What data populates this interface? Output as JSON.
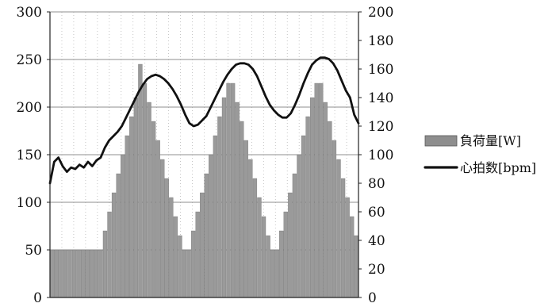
{
  "chart_data": {
    "type": "bar",
    "title": "",
    "xlabel": "",
    "ylabel_left": "",
    "ylabel_right": "",
    "left_axis": {
      "min": 0,
      "max": 300,
      "ticks": [
        "0",
        "50",
        "100",
        "150",
        "200",
        "250",
        "300"
      ]
    },
    "right_axis": {
      "min": 0,
      "max": 200,
      "ticks": [
        "0",
        "20",
        "40",
        "60",
        "80",
        "100",
        "120",
        "140",
        "160",
        "180",
        "200"
      ]
    },
    "grid": {
      "horizontal": true,
      "vertical_dotted": true
    },
    "legend_position": "right",
    "series": [
      {
        "name": "負荷量[W]",
        "type": "bar",
        "axis": "left",
        "color": "#9a9a9a",
        "values": [
          50,
          50,
          50,
          50,
          50,
          50,
          50,
          50,
          50,
          50,
          50,
          50,
          70,
          90,
          110,
          130,
          150,
          170,
          190,
          210,
          245,
          225,
          205,
          185,
          165,
          145,
          125,
          105,
          85,
          65,
          50,
          50,
          70,
          90,
          110,
          130,
          150,
          170,
          190,
          210,
          225,
          225,
          205,
          185,
          165,
          145,
          125,
          105,
          85,
          65,
          50,
          50,
          70,
          90,
          110,
          130,
          150,
          170,
          190,
          210,
          225,
          225,
          205,
          185,
          165,
          145,
          125,
          105,
          85,
          65
        ]
      },
      {
        "name": "心拍数[bpm]",
        "type": "line",
        "axis": "right",
        "color": "#111111",
        "points": [
          [
            0,
            80
          ],
          [
            1,
            95
          ],
          [
            2,
            98
          ],
          [
            3,
            92
          ],
          [
            4,
            88
          ],
          [
            5,
            91
          ],
          [
            6,
            90
          ],
          [
            7,
            93
          ],
          [
            8,
            91
          ],
          [
            9,
            95
          ],
          [
            10,
            92
          ],
          [
            11,
            96
          ],
          [
            12,
            98
          ],
          [
            13,
            105
          ],
          [
            14,
            110
          ],
          [
            15,
            113
          ],
          [
            16,
            116
          ],
          [
            17,
            120
          ],
          [
            18,
            126
          ],
          [
            19,
            132
          ],
          [
            20,
            138
          ],
          [
            21,
            144
          ],
          [
            22,
            149
          ],
          [
            23,
            153
          ],
          [
            24,
            155
          ],
          [
            25,
            156
          ],
          [
            26,
            155
          ],
          [
            27,
            153
          ],
          [
            28,
            150
          ],
          [
            29,
            146
          ],
          [
            30,
            141
          ],
          [
            31,
            135
          ],
          [
            32,
            128
          ],
          [
            33,
            122
          ],
          [
            34,
            120
          ],
          [
            35,
            121
          ],
          [
            36,
            124
          ],
          [
            37,
            127
          ],
          [
            38,
            133
          ],
          [
            39,
            139
          ],
          [
            40,
            145
          ],
          [
            41,
            151
          ],
          [
            42,
            156
          ],
          [
            43,
            160
          ],
          [
            44,
            163
          ],
          [
            45,
            164
          ],
          [
            46,
            164
          ],
          [
            47,
            163
          ],
          [
            48,
            160
          ],
          [
            49,
            155
          ],
          [
            50,
            148
          ],
          [
            51,
            141
          ],
          [
            52,
            135
          ],
          [
            53,
            131
          ],
          [
            54,
            128
          ],
          [
            55,
            126
          ],
          [
            56,
            126
          ],
          [
            57,
            129
          ],
          [
            58,
            135
          ],
          [
            59,
            142
          ],
          [
            60,
            150
          ],
          [
            61,
            157
          ],
          [
            62,
            163
          ],
          [
            63,
            166
          ],
          [
            64,
            168
          ],
          [
            65,
            168
          ],
          [
            66,
            167
          ],
          [
            67,
            164
          ],
          [
            68,
            159
          ],
          [
            69,
            152
          ],
          [
            70,
            145
          ],
          [
            71,
            140
          ],
          [
            72,
            128
          ],
          [
            73,
            122
          ]
        ]
      }
    ]
  }
}
